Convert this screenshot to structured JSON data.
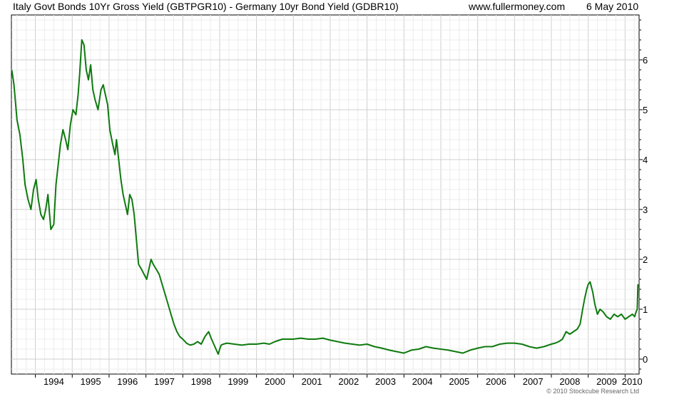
{
  "header": {
    "title": "Italy Govt Bonds 10Yr Gross Yield (GBTPGR10) - Germany 10yr Bond Yield (GDBR10)",
    "site": "www.fullermoney.com",
    "date": "6 May 2010"
  },
  "footer": {
    "copyright": "© 2010 Stockcube Research Ltd"
  },
  "chart_data": {
    "type": "line",
    "title": "Italy Govt Bonds 10Yr Gross Yield (GBTPGR10) - Germany 10yr Bond Yield (GDBR10)",
    "xlabel": "",
    "ylabel": "",
    "xlim": [
      1993.35,
      2010.38
    ],
    "ylim": [
      -0.3,
      6.9
    ],
    "x_ticks": [
      "1994",
      "1995",
      "1996",
      "1997",
      "1998",
      "1999",
      "2000",
      "2001",
      "2002",
      "2003",
      "2004",
      "2005",
      "2006",
      "2007",
      "2008",
      "2009",
      "2010"
    ],
    "y_ticks": [
      0,
      1,
      2,
      3,
      4,
      5,
      6
    ],
    "grid": true,
    "y_axis_side": "right",
    "line_color": "#0f7a0f",
    "series": [
      {
        "name": "",
        "x": [
          1993.36,
          1993.42,
          1993.5,
          1993.58,
          1993.66,
          1993.72,
          1993.8,
          1993.88,
          1993.95,
          1994.02,
          1994.08,
          1994.15,
          1994.22,
          1994.28,
          1994.34,
          1994.42,
          1994.5,
          1994.56,
          1994.62,
          1994.68,
          1994.75,
          1994.82,
          1994.88,
          1994.95,
          1995.02,
          1995.1,
          1995.16,
          1995.2,
          1995.26,
          1995.32,
          1995.38,
          1995.44,
          1995.5,
          1995.56,
          1995.62,
          1995.7,
          1995.78,
          1995.84,
          1995.9,
          1995.96,
          1996.02,
          1996.1,
          1996.16,
          1996.2,
          1996.26,
          1996.32,
          1996.38,
          1996.44,
          1996.5,
          1996.56,
          1996.62,
          1996.68,
          1996.74,
          1996.8,
          1996.88,
          1996.95,
          1997.02,
          1997.08,
          1997.14,
          1997.2,
          1997.28,
          1997.36,
          1997.44,
          1997.52,
          1997.6,
          1997.68,
          1997.76,
          1997.84,
          1997.92,
          1998.0,
          1998.1,
          1998.2,
          1998.3,
          1998.4,
          1998.5,
          1998.6,
          1998.7,
          1998.78,
          1998.84,
          1998.9,
          1998.96,
          1999.0,
          1999.04,
          1999.1,
          1999.2,
          1999.4,
          1999.6,
          1999.8,
          2000.0,
          2000.2,
          2000.35,
          2000.5,
          2000.7,
          2001.0,
          2001.2,
          2001.4,
          2001.6,
          2001.8,
          2002.0,
          2002.2,
          2002.4,
          2002.6,
          2002.8,
          2003.0,
          2003.2,
          2003.4,
          2003.5,
          2003.6,
          2003.8,
          2004.0,
          2004.2,
          2004.4,
          2004.6,
          2004.8,
          2005.0,
          2005.2,
          2005.4,
          2005.6,
          2005.8,
          2006.0,
          2006.2,
          2006.4,
          2006.6,
          2006.8,
          2007.0,
          2007.2,
          2007.4,
          2007.6,
          2007.8,
          2008.0,
          2008.1,
          2008.2,
          2008.3,
          2008.4,
          2008.5,
          2008.6,
          2008.7,
          2008.78,
          2008.85,
          2008.9,
          2008.96,
          2009.0,
          2009.05,
          2009.12,
          2009.18,
          2009.25,
          2009.32,
          2009.4,
          2009.5,
          2009.6,
          2009.7,
          2009.8,
          2009.9,
          2010.0,
          2010.1,
          2010.2,
          2010.26,
          2010.3,
          2010.33,
          2010.35
        ],
        "y": [
          5.8,
          5.5,
          4.8,
          4.5,
          4.0,
          3.5,
          3.2,
          3.0,
          3.4,
          3.6,
          3.2,
          2.9,
          2.8,
          3.0,
          3.3,
          2.6,
          2.7,
          3.5,
          3.9,
          4.3,
          4.6,
          4.4,
          4.2,
          4.7,
          5.0,
          4.9,
          5.3,
          5.7,
          6.4,
          6.3,
          5.8,
          5.6,
          5.9,
          5.4,
          5.2,
          5.0,
          5.4,
          5.5,
          5.3,
          5.1,
          4.6,
          4.3,
          4.1,
          4.4,
          4.0,
          3.6,
          3.3,
          3.1,
          2.9,
          3.3,
          3.2,
          2.9,
          2.4,
          1.9,
          1.8,
          1.7,
          1.6,
          1.8,
          2.0,
          1.9,
          1.8,
          1.7,
          1.5,
          1.3,
          1.1,
          0.9,
          0.7,
          0.55,
          0.45,
          0.4,
          0.32,
          0.28,
          0.3,
          0.35,
          0.3,
          0.45,
          0.55,
          0.4,
          0.3,
          0.2,
          0.1,
          0.2,
          0.28,
          0.3,
          0.32,
          0.3,
          0.28,
          0.3,
          0.3,
          0.32,
          0.3,
          0.35,
          0.4,
          0.4,
          0.42,
          0.4,
          0.4,
          0.42,
          0.38,
          0.35,
          0.32,
          0.3,
          0.28,
          0.3,
          0.25,
          0.22,
          0.2,
          0.18,
          0.15,
          0.12,
          0.18,
          0.2,
          0.25,
          0.22,
          0.2,
          0.18,
          0.15,
          0.12,
          0.18,
          0.22,
          0.25,
          0.25,
          0.3,
          0.32,
          0.32,
          0.3,
          0.25,
          0.22,
          0.25,
          0.3,
          0.32,
          0.35,
          0.4,
          0.55,
          0.5,
          0.55,
          0.6,
          0.7,
          1.0,
          1.2,
          1.4,
          1.5,
          1.55,
          1.35,
          1.1,
          0.9,
          1.0,
          0.95,
          0.85,
          0.8,
          0.9,
          0.85,
          0.9,
          0.8,
          0.85,
          0.9,
          0.85,
          0.95,
          1.0,
          1.5
        ]
      }
    ]
  }
}
